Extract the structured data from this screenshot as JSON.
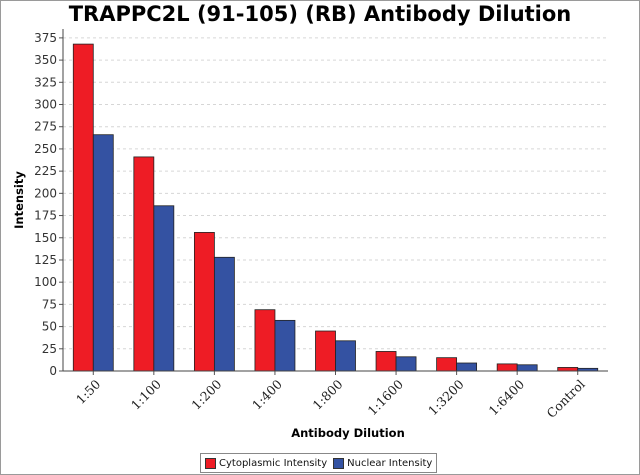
{
  "chart_data": {
    "type": "bar",
    "title": "TRAPPC2L (91-105) (RB) Antibody Dilution",
    "xlabel": "Antibody Dilution",
    "ylabel": "Intensity",
    "categories": [
      "1:50",
      "1:100",
      "1:200",
      "1:400",
      "1:800",
      "1:1600",
      "1:3200",
      "1:6400",
      "Control"
    ],
    "series": [
      {
        "name": "Cytoplasmic Intensity",
        "color": "#ee1c25",
        "values": [
          368,
          241,
          156,
          69,
          45,
          22,
          15,
          8,
          4
        ]
      },
      {
        "name": "Nuclear Intensity",
        "color": "#3452a2",
        "values": [
          266,
          186,
          128,
          57,
          34,
          16,
          9,
          7,
          3
        ]
      }
    ],
    "ylim": [
      0,
      385
    ],
    "yticks": [
      0,
      25,
      50,
      75,
      100,
      125,
      150,
      175,
      200,
      225,
      250,
      275,
      300,
      325,
      350,
      375
    ],
    "grid": true,
    "legend_position": "bottom"
  }
}
